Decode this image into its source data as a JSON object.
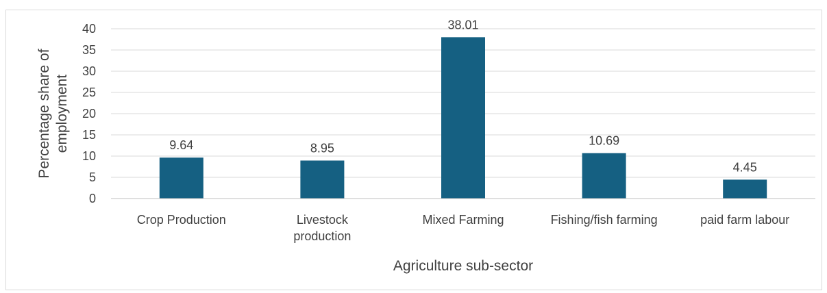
{
  "chart_data": {
    "type": "bar",
    "title": "",
    "categories": [
      "Crop Production",
      "Livestock production",
      "Mixed Farming",
      "Fishing/fish farming",
      "paid farm labour"
    ],
    "category_lines": [
      [
        "Crop Production"
      ],
      [
        "Livestock",
        "production"
      ],
      [
        "Mixed Farming"
      ],
      [
        "Fishing/fish farming"
      ],
      [
        "paid farm labour"
      ]
    ],
    "values": [
      9.64,
      8.95,
      38.01,
      10.69,
      4.45
    ],
    "data_labels": [
      "9.64",
      "8.95",
      "38.01",
      "10.69",
      "4.45"
    ],
    "xlabel": "Agriculture sub-sector",
    "ylabel_lines": [
      "Percentage share of",
      "employment"
    ],
    "ylim": [
      0,
      40
    ],
    "yticks": [
      0,
      5,
      10,
      15,
      20,
      25,
      30,
      35,
      40
    ],
    "grid": true,
    "legend": "none",
    "bar_color": "#156082"
  }
}
